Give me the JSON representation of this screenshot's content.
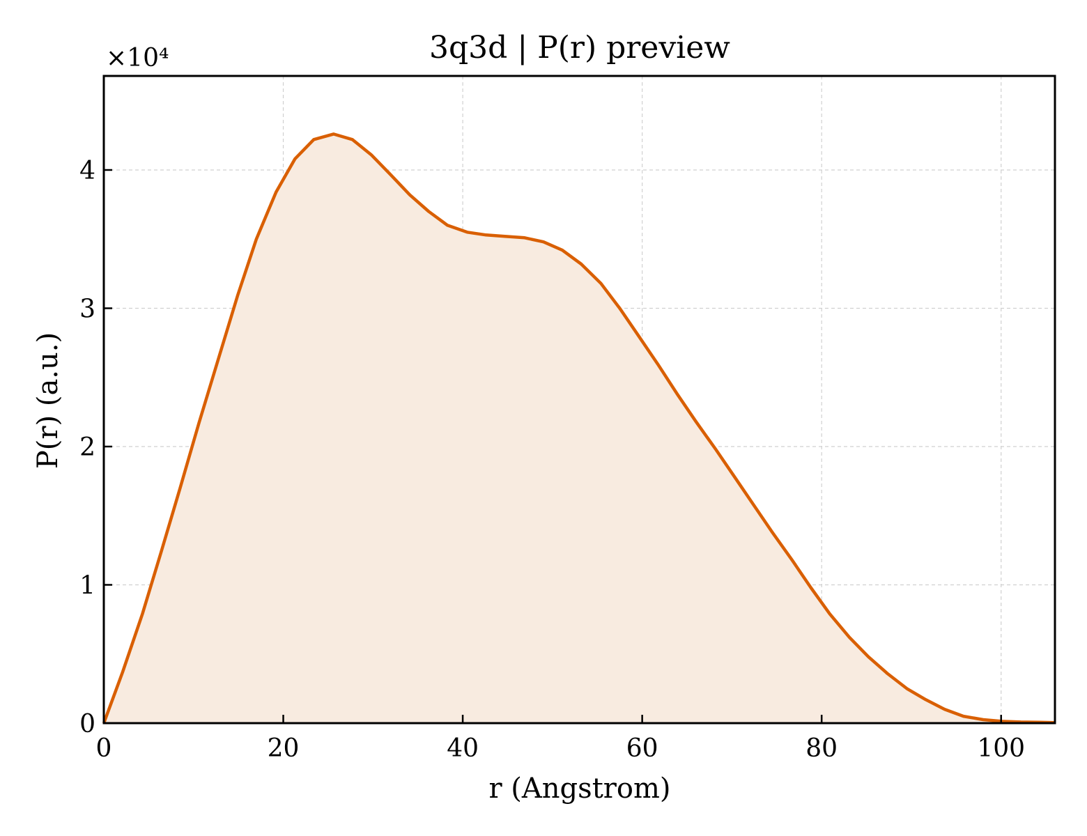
{
  "chart_data": {
    "type": "area",
    "title": "3q3d | P(r) preview",
    "xlabel": "r (Angstrom)",
    "ylabel": "P(r) (a.u.)",
    "y_multiplier_label": "×10⁴",
    "xlim": [
      0,
      106
    ],
    "ylim": [
      0,
      46800
    ],
    "x_ticks": [
      0,
      20,
      40,
      60,
      80,
      100
    ],
    "x_tick_labels": [
      "0",
      "20",
      "40",
      "60",
      "80",
      "100"
    ],
    "y_ticks": [
      0,
      10000,
      20000,
      30000,
      40000
    ],
    "y_tick_labels": [
      "0",
      "1",
      "2",
      "3",
      "4"
    ],
    "grid": true,
    "line_color": "#d95f02",
    "fill_color": "#f8ebe0",
    "series": [
      {
        "x": [
          0,
          2.1,
          4.3,
          6.4,
          8.5,
          10.6,
          12.8,
          14.9,
          17.0,
          19.2,
          21.3,
          23.4,
          25.6,
          27.7,
          29.8,
          31.9,
          34.1,
          36.2,
          38.3,
          40.5,
          42.6,
          44.7,
          46.9,
          49.0,
          51.1,
          53.2,
          55.4,
          57.5,
          59.6,
          61.8,
          63.9,
          66.0,
          68.2,
          70.3,
          72.4,
          74.5,
          76.7,
          78.8,
          80.9,
          83.1,
          85.2,
          87.3,
          89.5,
          91.6,
          93.7,
          95.8,
          98.0,
          100.1,
          102.2,
          104.4,
          106
        ],
        "y": [
          0,
          3700,
          7900,
          12400,
          17000,
          21700,
          26400,
          30900,
          35000,
          38400,
          40800,
          42200,
          42600,
          42200,
          41100,
          39700,
          38200,
          37000,
          36000,
          35500,
          35300,
          35200,
          35100,
          34800,
          34200,
          33200,
          31800,
          30000,
          28000,
          25900,
          23800,
          21800,
          19800,
          17800,
          15800,
          13800,
          11800,
          9800,
          7900,
          6200,
          4800,
          3600,
          2500,
          1700,
          1000,
          500,
          250,
          130,
          80,
          60,
          40
        ]
      }
    ]
  }
}
